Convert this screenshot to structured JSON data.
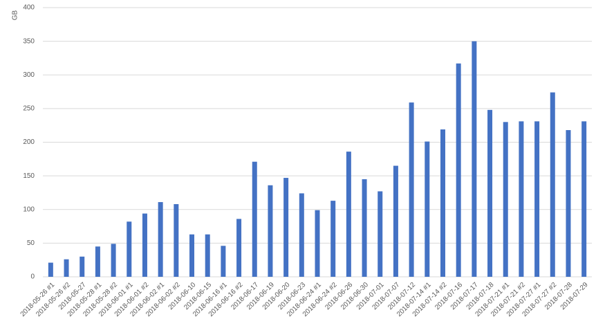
{
  "chart_data": {
    "type": "bar",
    "y_label": "GB",
    "categories": [
      "2018-05-26 #1",
      "2018-05-26 #2",
      "2018-05-27",
      "2018-05-28 #1",
      "2018-05-28 #2",
      "2018-06-01 #1",
      "2018-06-01 #2",
      "2018-06-02 #1",
      "2018-06-02 #2",
      "2018-06-10",
      "2018-06-15",
      "2018-06-16 #1",
      "2018-06-16 #2",
      "2018-06-17",
      "2018-06-19",
      "2018-06-20",
      "2018-06-23",
      "2018-06-24 #1",
      "2018-06-24 #2",
      "2018-06-26",
      "2018-06-30",
      "2018-07-01",
      "2018-07-07",
      "2018-07-12",
      "2018-07-14 #1",
      "2018-07-14 #2",
      "2018-07-16",
      "2018-07-17",
      "2018-07-18",
      "2018-07-21 #1",
      "2018-07-21 #2",
      "2018-07-27 #1",
      "2018-07-27 #2",
      "2018-07-28",
      "2018-07-29"
    ],
    "values": [
      21,
      26,
      30,
      45,
      49,
      82,
      94,
      111,
      108,
      63,
      63,
      46,
      86,
      171,
      136,
      147,
      124,
      99,
      113,
      186,
      145,
      127,
      165,
      259,
      201,
      219,
      317,
      350,
      248,
      230,
      231,
      231,
      274,
      218,
      231
    ],
    "color": "#4472c4",
    "ylim": [
      0,
      400
    ],
    "yticks": [
      0,
      50,
      100,
      150,
      200,
      250,
      300,
      350,
      400
    ],
    "grid": true
  }
}
